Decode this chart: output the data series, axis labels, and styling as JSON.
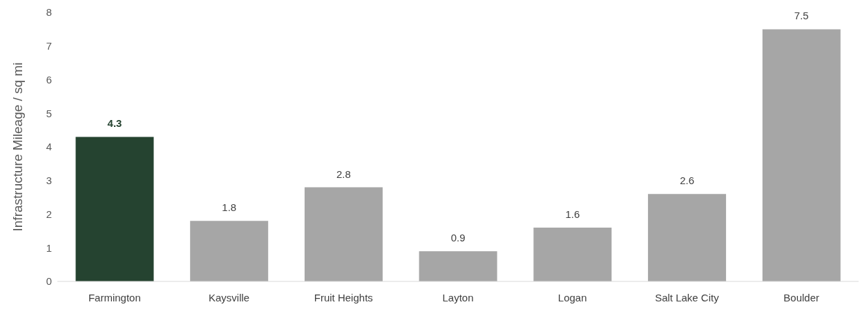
{
  "chart_data": {
    "type": "bar",
    "ylabel": "Infrastructure Mileage / sq mi",
    "categories": [
      "Farmington",
      "Kaysville",
      "Fruit Heights",
      "Layton",
      "Logan",
      "Salt Lake City",
      "Boulder"
    ],
    "values": [
      4.3,
      1.8,
      2.8,
      0.9,
      1.6,
      2.6,
      7.5
    ],
    "colors": [
      "#254330",
      "#a6a6a6",
      "#a6a6a6",
      "#a6a6a6",
      "#a6a6a6",
      "#a6a6a6",
      "#a6a6a6"
    ],
    "ylim": [
      0,
      8
    ],
    "yticks": [
      0,
      1,
      2,
      3,
      4,
      5,
      6,
      7,
      8
    ],
    "grid": false,
    "data_labels": true
  }
}
